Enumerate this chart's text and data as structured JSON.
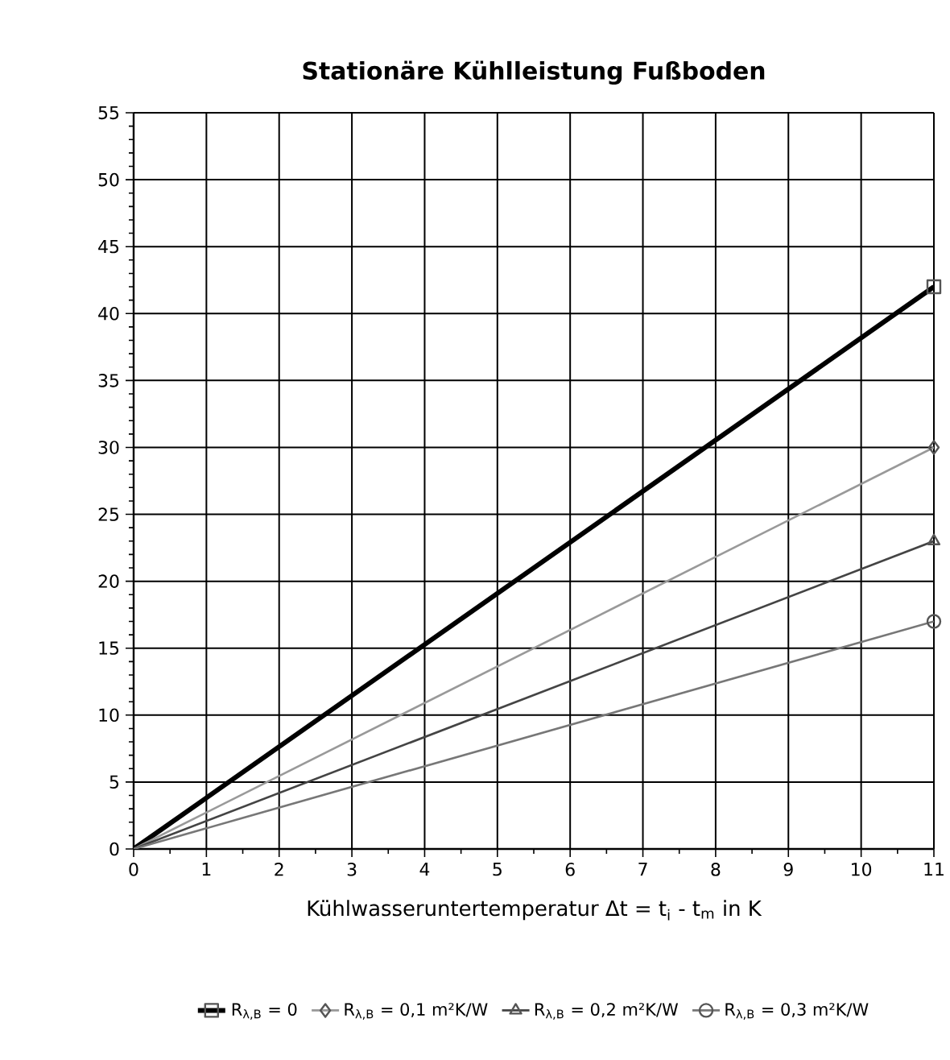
{
  "chart_data": {
    "type": "line",
    "title": "Stationäre Kühlleistung Fußboden",
    "xlabel": "Kühlwasseruntertemperatur Δt = t$_{i}$ - t$_{m}$ in K",
    "x": [
      0,
      11
    ],
    "series": [
      {
        "name": "R$_{λ,B}$ = 0",
        "color": "#000000",
        "values": [
          0,
          42
        ],
        "marker": "square"
      },
      {
        "name": "R$_{λ,B}$ = 0,1 m²K/W",
        "color": "#999999",
        "values": [
          0,
          30
        ],
        "marker": "diamond"
      },
      {
        "name": "R$_{λ,B}$ = 0,2 m²K/W",
        "color": "#444444",
        "values": [
          0,
          23
        ],
        "marker": "triangle"
      },
      {
        "name": "R$_{λ,B}$ = 0,3 m²K/W",
        "color": "#777777",
        "values": [
          0,
          17
        ],
        "marker": "circle"
      }
    ],
    "xlim": [
      0,
      11
    ],
    "xticks": [
      0,
      1,
      2,
      3,
      4,
      5,
      6,
      7,
      8,
      9,
      10,
      11
    ],
    "ylim": [
      0,
      55
    ],
    "yticks": [
      0,
      5,
      10,
      15,
      20,
      25,
      30,
      35,
      40,
      45,
      50,
      55
    ],
    "grid": true,
    "legend": "bottom",
    "line_style": "solid"
  }
}
